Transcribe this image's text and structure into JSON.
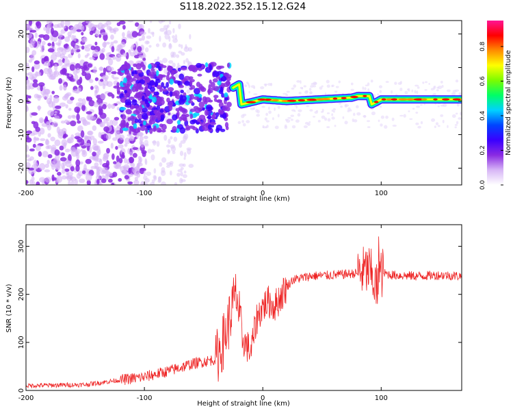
{
  "title": "S118.2022.352.15.12.G24",
  "chart_data": [
    {
      "type": "heatmap",
      "xlabel": "Height of straight line (km)",
      "ylabel": "Frequency (Hz)",
      "xlim": [
        -200,
        168
      ],
      "ylim": [
        -25,
        24
      ],
      "xticks": [
        -200,
        -100,
        0,
        100
      ],
      "yticks": [
        -20,
        -10,
        0,
        10,
        20
      ],
      "colorbar": {
        "label": "Normalized spectral amplitude",
        "ticks": [
          "0.0",
          "0.2",
          "0.4",
          "0.6",
          "0.8"
        ],
        "range": [
          0,
          0.95
        ],
        "colors": [
          "#ffffff",
          "#d7b6f6",
          "#8a2be2",
          "#3a00ff",
          "#0044ff",
          "#00d2ff",
          "#00ff66",
          "#7cfc00",
          "#ffff00",
          "#ff8c00",
          "#ff0000",
          "#ff1493"
        ]
      },
      "line_track": [
        {
          "x": -200,
          "f": null
        },
        {
          "x": -25,
          "f": 4
        },
        {
          "x": -20,
          "f": 5
        },
        {
          "x": -18,
          "f": -1
        },
        {
          "x": 0,
          "f": 0.5
        },
        {
          "x": 20,
          "f": 0
        },
        {
          "x": 75,
          "f": 1
        },
        {
          "x": 80,
          "f": 1.5
        },
        {
          "x": 90,
          "f": 1.5
        },
        {
          "x": 92,
          "f": -1
        },
        {
          "x": 100,
          "f": 0.5
        },
        {
          "x": 168,
          "f": 0.5
        }
      ],
      "scatter_regions": [
        {
          "x": [
            -200,
            -100
          ],
          "f": [
            -25,
            24
          ],
          "amplitude": 0.15,
          "density": "high"
        },
        {
          "x": [
            -120,
            -28
          ],
          "f": [
            -10,
            10
          ],
          "amplitude": 0.25,
          "density": "high"
        }
      ]
    },
    {
      "type": "line",
      "xlabel": "Height of straight line (km)",
      "ylabel": "SNR (10 * v/v)",
      "xlim": [
        -200,
        168
      ],
      "ylim": [
        0,
        345
      ],
      "xticks": [
        -200,
        -100,
        0,
        100
      ],
      "yticks": [
        0,
        100,
        200,
        300
      ],
      "color": "#ee2222",
      "series": [
        {
          "values_trend": [
            [
              -200,
              10
            ],
            [
              -150,
              12
            ],
            [
              -120,
              22
            ],
            [
              -100,
              28
            ],
            [
              -80,
              40
            ],
            [
              -60,
              55
            ],
            [
              -40,
              65
            ],
            [
              -35,
              90
            ],
            [
              -30,
              130
            ],
            [
              -25,
              180
            ],
            [
              -22,
              200
            ],
            [
              -18,
              110
            ],
            [
              -10,
              80
            ],
            [
              -5,
              150
            ],
            [
              0,
              175
            ],
            [
              5,
              185
            ],
            [
              10,
              175
            ],
            [
              15,
              195
            ],
            [
              20,
              215
            ],
            [
              25,
              230
            ],
            [
              40,
              238
            ],
            [
              60,
              240
            ],
            [
              80,
              244
            ],
            [
              90,
              250
            ],
            [
              95,
              220
            ],
            [
              98,
              200
            ],
            [
              100,
              245
            ],
            [
              110,
              240
            ],
            [
              130,
              238
            ],
            [
              150,
              240
            ],
            [
              168,
              238
            ]
          ]
        }
      ]
    }
  ]
}
